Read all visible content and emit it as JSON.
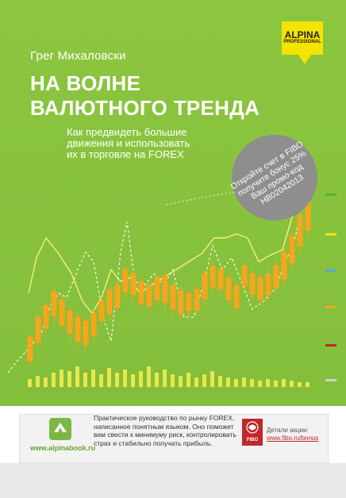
{
  "cover": {
    "author": "Грег Михаловски",
    "title_line1": "НА ВОЛНЕ",
    "title_line2": "ВАЛЮТНОГО ТРЕНДА",
    "subtitle": "Как предвидеть большие движения и использовать их в торговле на FOREX",
    "logo_line1": "ALPINA",
    "logo_line2": "PROFESSIONAL",
    "promo_lines": [
      "Откройте счет в FIBO",
      "получите бонус 25%",
      "Ваш промо-код",
      "НВ02042013"
    ],
    "colors": {
      "background": "#8cc63f",
      "logo": "#f5e300",
      "candle": "#f7a51c",
      "volume": "#e8e84a",
      "promo": "#8e8e8e"
    }
  },
  "bottom": {
    "site_url": "www.alpinabook.ru",
    "description": "Практическое руководство по рынку FOREX, написанное понятным языком. Оно поможет вам свести к минимуму риск, контролировать страх и стабильно получать прибыль.",
    "fibo_label": "FIBO",
    "details_label": "Детали акции:",
    "details_url": "www.fibo.ru/bonus"
  }
}
